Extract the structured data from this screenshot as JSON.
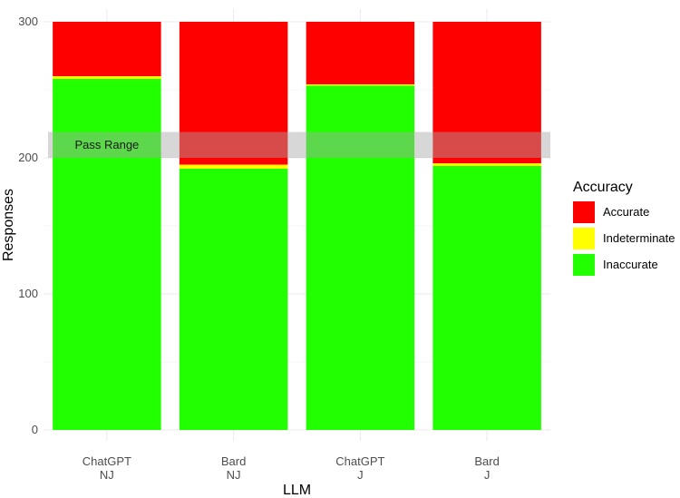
{
  "chart_data": {
    "type": "bar",
    "stacked": true,
    "categories": [
      [
        "ChatGPT",
        "NJ"
      ],
      [
        "Bard",
        "NJ"
      ],
      [
        "ChatGPT",
        "J"
      ],
      [
        "Bard",
        "J"
      ]
    ],
    "series": [
      {
        "name": "Inaccurate",
        "values": [
          258,
          192,
          253,
          194
        ],
        "color": "#22ff00"
      },
      {
        "name": "Indeterminate",
        "values": [
          2,
          3,
          1,
          2
        ],
        "color": "#ffff00"
      },
      {
        "name": "Accurate",
        "values": [
          40,
          105,
          46,
          104
        ],
        "color": "#ff0000"
      }
    ],
    "xlabel": "LLM",
    "ylabel": "Responses",
    "ylim": [
      0,
      300
    ],
    "yticks": [
      0,
      100,
      200,
      300
    ],
    "grid": true,
    "legend": {
      "title": "Accuracy",
      "position": "right",
      "order": [
        "Accurate",
        "Indeterminate",
        "Inaccurate"
      ]
    },
    "annotation": {
      "label": "Pass Range",
      "ymin": 200,
      "ymax": 219,
      "color": "#a6a6a6"
    }
  }
}
